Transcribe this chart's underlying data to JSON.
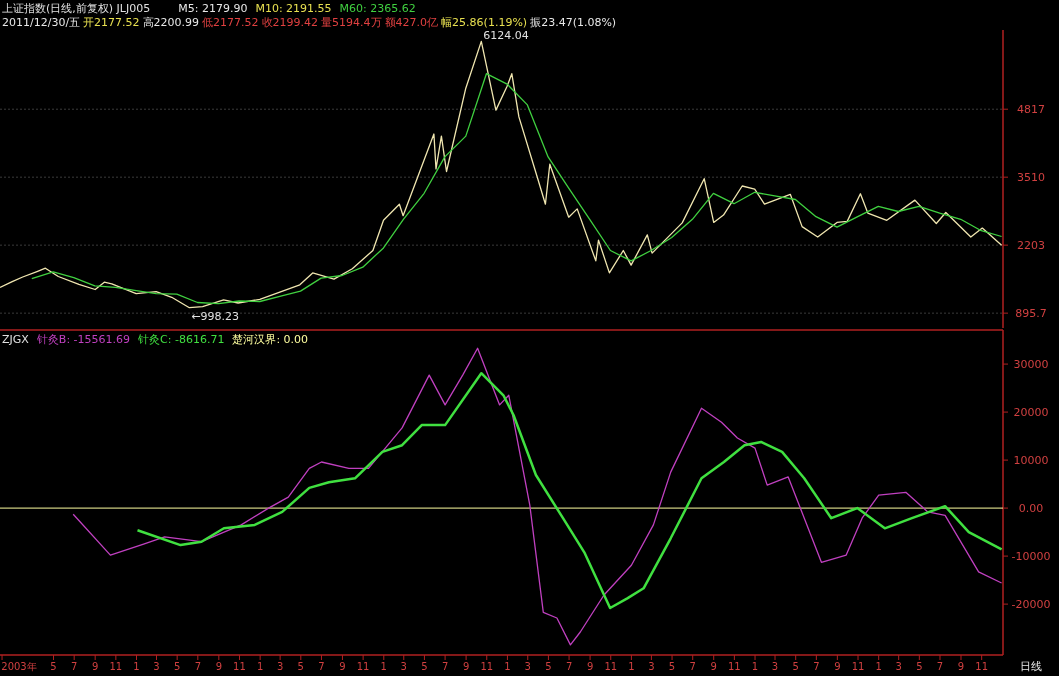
{
  "chart_data": [
    {
      "type": "line",
      "title": "上证指数(日线,前复权) JLJ005",
      "xlim": [
        "2003-11-25",
        "2012-01-03"
      ],
      "ylim": [
        610,
        6340
      ],
      "yticks": [
        895.7,
        2203,
        3510,
        4817
      ],
      "grid": "y",
      "tick_labels": "y",
      "legend": "top left",
      "series": [
        {
          "color": "#f0e6b0",
          "x": [
            "2003-11-25",
            "2003-12-31",
            "2004-01-31",
            "2004-03-15",
            "2004-04-07",
            "2004-05-15",
            "2004-07-15",
            "2004-09-01",
            "2004-09-28",
            "2004-10-20",
            "2004-12-31",
            "2005-02-28",
            "2005-04-15",
            "2005-06-06",
            "2005-07-15",
            "2005-09-15",
            "2005-10-28",
            "2005-12-31",
            "2006-02-28",
            "2006-04-28",
            "2006-06-05",
            "2006-08-07",
            "2006-09-30",
            "2006-11-30",
            "2006-12-31",
            "2007-02-16",
            "2007-02-27",
            "2007-04-30",
            "2007-05-29",
            "2007-06-04",
            "2007-06-20",
            "2007-07-05",
            "2007-08-31",
            "2007-10-16",
            "2007-11-28",
            "2007-12-31",
            "2008-01-14",
            "2008-02-04",
            "2008-03-31",
            "2008-04-22",
            "2008-05-05",
            "2008-06-30",
            "2008-07-25",
            "2008-09-18",
            "2008-09-26",
            "2008-10-28",
            "2008-12-08",
            "2008-12-31",
            "2009-02-17",
            "2009-03-03",
            "2009-05-31",
            "2009-08-04",
            "2009-09-01",
            "2009-09-30",
            "2009-11-24",
            "2009-12-31",
            "2010-01-29",
            "2010-04-15",
            "2010-05-20",
            "2010-07-05",
            "2010-08-31",
            "2010-09-30",
            "2010-11-08",
            "2010-11-30",
            "2011-01-25",
            "2011-04-18",
            "2011-06-20",
            "2011-07-18",
            "2011-09-30",
            "2011-11-03",
            "2011-12-30"
          ],
          "values": [
            1390,
            1500,
            1590,
            1700,
            1760,
            1600,
            1450,
            1350,
            1490,
            1460,
            1270,
            1310,
            1200,
            1000,
            1020,
            1150,
            1090,
            1160,
            1300,
            1440,
            1670,
            1550,
            1750,
            2100,
            2680,
            2990,
            2770,
            3840,
            4340,
            3670,
            4300,
            3620,
            5220,
            6120,
            4800,
            5260,
            5500,
            4670,
            3470,
            2990,
            3760,
            2740,
            2900,
            1900,
            2300,
            1670,
            2100,
            1820,
            2400,
            2050,
            2630,
            3480,
            2640,
            2780,
            3340,
            3280,
            2990,
            3180,
            2560,
            2360,
            2640,
            2660,
            3190,
            2820,
            2680,
            3070,
            2620,
            2830,
            2360,
            2530,
            2200
          ]
        },
        {
          "name": "M60: 2365.62",
          "color": "#40d040",
          "x": [
            "2004-02-27",
            "2004-04-30",
            "2004-06-30",
            "2004-08-31",
            "2004-10-31",
            "2004-12-31",
            "2005-02-28",
            "2005-04-30",
            "2005-06-30",
            "2005-08-31",
            "2005-10-31",
            "2005-12-31",
            "2006-02-28",
            "2006-04-30",
            "2006-06-30",
            "2006-08-31",
            "2006-10-31",
            "2006-12-31",
            "2007-02-28",
            "2007-04-30",
            "2007-06-30",
            "2007-08-31",
            "2007-10-31",
            "2007-12-31",
            "2008-02-29",
            "2008-04-30",
            "2008-06-30",
            "2008-08-31",
            "2008-10-31",
            "2008-12-31",
            "2009-02-28",
            "2009-04-30",
            "2009-06-30",
            "2009-08-31",
            "2009-10-31",
            "2009-12-31",
            "2010-02-28",
            "2010-04-30",
            "2010-06-30",
            "2010-08-31",
            "2010-10-31",
            "2010-12-31",
            "2011-02-28",
            "2011-04-30",
            "2011-06-30",
            "2011-08-31",
            "2011-10-31",
            "2011-12-30"
          ],
          "values": [
            1560,
            1690,
            1580,
            1420,
            1390,
            1330,
            1270,
            1260,
            1100,
            1080,
            1130,
            1120,
            1220,
            1320,
            1570,
            1620,
            1780,
            2150,
            2700,
            3200,
            3900,
            4300,
            5500,
            5300,
            4900,
            3900,
            3300,
            2700,
            2100,
            1900,
            2100,
            2350,
            2700,
            3200,
            3000,
            3220,
            3150,
            3080,
            2750,
            2550,
            2750,
            2950,
            2850,
            2950,
            2820,
            2700,
            2480,
            2370
          ]
        }
      ],
      "annotations": [
        "M5: 2179.90",
        "M10: 2191.55",
        "2011/12/30/五",
        "开2177.52",
        "高2200.99",
        "低2177.52",
        "收2199.42",
        "量5194.4万",
        "额427.0亿",
        "幅25.86(1.19%)",
        "振23.47(1.08%)",
        {
          "text": "6124.04",
          "x": "2007-10-16",
          "y": 6124.04
        },
        {
          "text": "←998.23",
          "x": "2005-06-06",
          "y": 998.23
        }
      ]
    },
    {
      "type": "line",
      "title": "ZJGX",
      "xlim": [
        "2003-11-25",
        "2012-01-03"
      ],
      "ylim": [
        -30600,
        37100
      ],
      "yticks": [
        30000,
        20000,
        10000,
        {
          "value": 0,
          "label": "0.00"
        },
        -10000,
        -20000
      ],
      "legend": "top left",
      "xticks": [
        {
          "value": "2003-12-01",
          "label": "2003年"
        },
        {
          "value": "2004-05-01",
          "label": "5"
        },
        {
          "value": "2004-07-01",
          "label": "7"
        },
        {
          "value": "2004-09-01",
          "label": "9"
        },
        {
          "value": "2004-11-01",
          "label": "11"
        },
        {
          "value": "2005-01-01",
          "label": "1"
        },
        {
          "value": "2005-03-01",
          "label": "3"
        },
        {
          "value": "2005-05-01",
          "label": "5"
        },
        {
          "value": "2005-07-01",
          "label": "7"
        },
        {
          "value": "2005-09-01",
          "label": "9"
        },
        {
          "value": "2005-11-01",
          "label": "11"
        },
        {
          "value": "2006-01-01",
          "label": "1"
        },
        {
          "value": "2006-03-01",
          "label": "3"
        },
        {
          "value": "2006-05-01",
          "label": "5"
        },
        {
          "value": "2006-07-01",
          "label": "7"
        },
        {
          "value": "2006-09-01",
          "label": "9"
        },
        {
          "value": "2006-11-01",
          "label": "11"
        },
        {
          "value": "2007-01-01",
          "label": "1"
        },
        {
          "value": "2007-03-01",
          "label": "3"
        },
        {
          "value": "2007-05-01",
          "label": "5"
        },
        {
          "value": "2007-07-01",
          "label": "7"
        },
        {
          "value": "2007-09-01",
          "label": "9"
        },
        {
          "value": "2007-11-01",
          "label": "11"
        },
        {
          "value": "2008-01-01",
          "label": "1"
        },
        {
          "value": "2008-03-01",
          "label": "3"
        },
        {
          "value": "2008-05-01",
          "label": "5"
        },
        {
          "value": "2008-07-01",
          "label": "7"
        },
        {
          "value": "2008-09-01",
          "label": "9"
        },
        {
          "value": "2008-11-01",
          "label": "11"
        },
        {
          "value": "2009-01-01",
          "label": "1"
        },
        {
          "value": "2009-03-01",
          "label": "3"
        },
        {
          "value": "2009-05-01",
          "label": "5"
        },
        {
          "value": "2009-07-01",
          "label": "7"
        },
        {
          "value": "2009-09-01",
          "label": "9"
        },
        {
          "value": "2009-11-01",
          "label": "11"
        },
        {
          "value": "2010-01-01",
          "label": "1"
        },
        {
          "value": "2010-03-01",
          "label": "3"
        },
        {
          "value": "2010-05-01",
          "label": "5"
        },
        {
          "value": "2010-07-01",
          "label": "7"
        },
        {
          "value": "2010-09-01",
          "label": "9"
        },
        {
          "value": "2010-11-01",
          "label": "11"
        },
        {
          "value": "2011-01-01",
          "label": "1"
        },
        {
          "value": "2011-03-01",
          "label": "3"
        },
        {
          "value": "2011-05-01",
          "label": "5"
        },
        {
          "value": "2011-07-01",
          "label": "7"
        },
        {
          "value": "2011-09-01",
          "label": "9"
        },
        {
          "value": "2011-11-01",
          "label": "11"
        }
      ],
      "series": [
        {
          "name": "针灸B: -15561.69",
          "color": "#c040c0",
          "x": [
            "2004-06-28",
            "2004-10-16",
            "2005-01-22",
            "2005-03-25",
            "2005-07-12",
            "2005-11-06",
            "2006-01-26",
            "2006-03-25",
            "2006-05-26",
            "2006-07-01",
            "2006-09-20",
            "2006-11-17",
            "2007-02-24",
            "2007-05-15",
            "2007-07-01",
            "2007-08-22",
            "2007-10-05",
            "2007-12-09",
            "2008-01-05",
            "2008-03-07",
            "2008-04-16",
            "2008-05-26",
            "2008-07-05",
            "2008-08-03",
            "2008-10-12",
            "2009-01-01",
            "2009-03-07",
            "2009-04-27",
            "2009-07-27",
            "2009-09-24",
            "2009-11-10",
            "2010-01-01",
            "2010-02-06",
            "2010-04-09",
            "2010-07-16",
            "2010-09-27",
            "2010-11-13",
            "2011-01-01",
            "2011-03-22",
            "2011-05-26",
            "2011-07-16",
            "2011-10-23",
            "2011-12-30"
          ],
          "values": [
            -1300,
            -9800,
            -7500,
            -6000,
            -7000,
            -3500,
            0,
            2300,
            8300,
            9600,
            8300,
            8300,
            16700,
            27700,
            21500,
            27700,
            33300,
            21500,
            23500,
            600,
            -21700,
            -22900,
            -28500,
            -25800,
            -18100,
            -11900,
            -3500,
            7500,
            20800,
            17900,
            14600,
            12500,
            4800,
            6500,
            -11300,
            -9800,
            -2100,
            2700,
            3300,
            -800,
            -1500,
            -13300,
            -15600
          ]
        },
        {
          "name": "针灸C: -8616.71",
          "color": "#40e040",
          "x": [
            "2005-01-04",
            "2005-05-11",
            "2005-07-12",
            "2005-09-16",
            "2005-12-16",
            "2006-03-07",
            "2006-05-26",
            "2006-07-23",
            "2006-10-08",
            "2006-12-28",
            "2007-02-24",
            "2007-04-23",
            "2007-07-01",
            "2007-10-16",
            "2007-12-20",
            "2008-01-19",
            "2008-03-25",
            "2008-06-13",
            "2008-08-15",
            "2008-10-30",
            "2008-12-20",
            "2009-02-06",
            "2009-04-27",
            "2009-07-27",
            "2009-10-01",
            "2009-12-01",
            "2010-01-19",
            "2010-03-22",
            "2010-05-26",
            "2010-08-14",
            "2010-10-30",
            "2011-01-19",
            "2011-04-09",
            "2011-07-16",
            "2011-09-24",
            "2011-12-30"
          ],
          "values": [
            -4600,
            -7700,
            -7000,
            -4200,
            -3500,
            -800,
            4200,
            5400,
            6200,
            11700,
            13100,
            17300,
            17300,
            28100,
            23500,
            19400,
            6900,
            -2100,
            -9200,
            -20800,
            -18800,
            -16700,
            -6300,
            6200,
            9600,
            13100,
            13800,
            11700,
            6200,
            -2100,
            0,
            -4200,
            -2100,
            400,
            -5000,
            -8600
          ]
        }
      ],
      "ref_lines": [
        {
          "axis": "y",
          "value": 0,
          "label": "楚河汉界: 0.00",
          "color": "#ffffa0"
        }
      ],
      "annotations": [
        "日线"
      ]
    }
  ]
}
